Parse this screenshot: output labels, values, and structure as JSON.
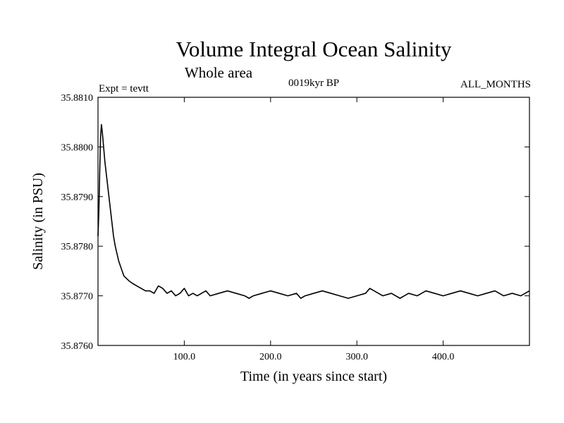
{
  "chart_data": {
    "type": "line",
    "title": "Volume Integral Ocean Salinity",
    "subtitle": "Whole area",
    "left_label": "Expt = tevtt",
    "center_label": "0019kyr BP",
    "right_label": "ALL_MONTHS",
    "xlabel": "Time (in years since start)",
    "ylabel": "Salinity (in PSU)",
    "xlim": [
      0,
      500
    ],
    "ylim": [
      35.876,
      35.881
    ],
    "x_ticks": [
      100,
      200,
      300,
      400
    ],
    "x_tick_labels": [
      "100.0",
      "200.0",
      "300.0",
      "400.0"
    ],
    "y_ticks": [
      35.876,
      35.877,
      35.878,
      35.879,
      35.88,
      35.881
    ],
    "y_tick_labels": [
      "35.8760",
      "35.8770",
      "35.8780",
      "35.8790",
      "35.8800",
      "35.8810"
    ],
    "grid": false,
    "series": [
      {
        "x": [
          0,
          1,
          2,
          3,
          4,
          5,
          6,
          7,
          8,
          10,
          12,
          14,
          16,
          18,
          20,
          22,
          24,
          26,
          28,
          30,
          33,
          36,
          40,
          45,
          50,
          55,
          60,
          65,
          70,
          75,
          80,
          85,
          90,
          95,
          100,
          105,
          110,
          115,
          120,
          125,
          130,
          140,
          150,
          160,
          170,
          175,
          180,
          190,
          200,
          210,
          220,
          230,
          235,
          240,
          250,
          260,
          270,
          280,
          290,
          300,
          310,
          315,
          320,
          330,
          340,
          350,
          355,
          360,
          370,
          380,
          390,
          400,
          410,
          420,
          430,
          440,
          450,
          460,
          470,
          480,
          490,
          500
        ],
        "values": [
          35.8782,
          35.8787,
          35.8795,
          35.8802,
          35.88045,
          35.8803,
          35.8801,
          35.8799,
          35.8797,
          35.8794,
          35.8791,
          35.8788,
          35.8785,
          35.8782,
          35.878,
          35.87785,
          35.8777,
          35.8776,
          35.8775,
          35.8774,
          35.87735,
          35.8773,
          35.87725,
          35.8772,
          35.87715,
          35.8771,
          35.8771,
          35.87705,
          35.8772,
          35.87715,
          35.87705,
          35.8771,
          35.877,
          35.87705,
          35.87715,
          35.877,
          35.87705,
          35.877,
          35.87705,
          35.8771,
          35.877,
          35.87705,
          35.8771,
          35.87705,
          35.877,
          35.87695,
          35.877,
          35.87705,
          35.8771,
          35.87705,
          35.877,
          35.87705,
          35.87695,
          35.877,
          35.87705,
          35.8771,
          35.87705,
          35.877,
          35.87695,
          35.877,
          35.87705,
          35.87715,
          35.8771,
          35.877,
          35.87705,
          35.87695,
          35.877,
          35.87705,
          35.877,
          35.8771,
          35.87705,
          35.877,
          35.87705,
          35.8771,
          35.87705,
          35.877,
          35.87705,
          35.8771,
          35.877,
          35.87705,
          35.877,
          35.8771
        ]
      }
    ]
  }
}
